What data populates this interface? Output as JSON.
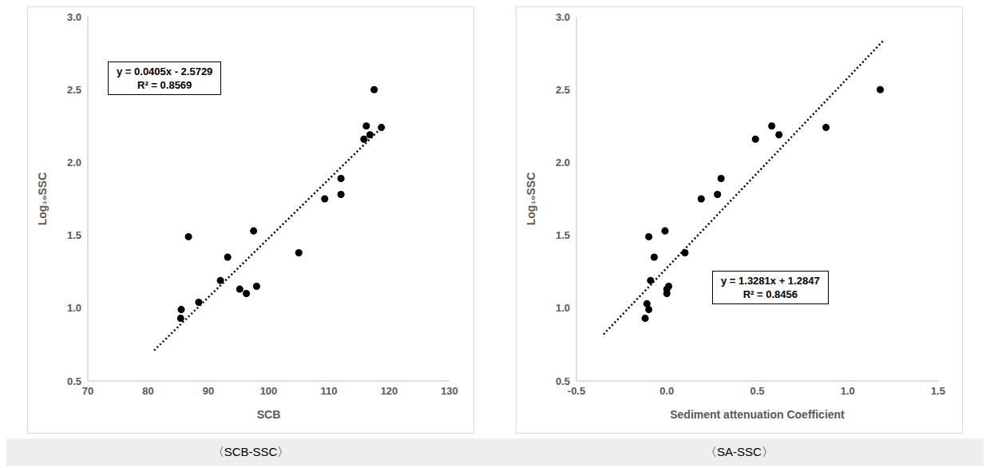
{
  "chart_data": [
    {
      "type": "scatter",
      "caption": "〈SCB-SSC〉",
      "x_label": "SCB",
      "y_label": "Log₁₀SSC",
      "x": [
        85.5,
        85.4,
        86.7,
        88.4,
        92.0,
        93.2,
        95.2,
        96.3,
        97.5,
        98.0,
        105.0,
        109.3,
        112.0,
        112.0,
        115.8,
        116.2,
        116.8,
        117.5,
        118.7
      ],
      "values": [
        0.99,
        0.93,
        1.49,
        1.04,
        1.19,
        1.35,
        1.13,
        1.1,
        1.53,
        1.15,
        1.38,
        1.75,
        1.89,
        1.78,
        2.16,
        2.25,
        2.19,
        2.5,
        2.24
      ],
      "color": "#000000",
      "marker": "circle",
      "trend_line": {
        "x": [
          81,
          119
        ],
        "values": [
          0.71,
          2.25
        ],
        "color": "#000000",
        "line_style": "dotted"
      },
      "annotations": [
        "y = 0.0405x - 2.5729",
        "R² = 0.8569"
      ],
      "xlim": [
        70,
        130
      ],
      "xticks": [
        70,
        80,
        90,
        100,
        110,
        120,
        130
      ],
      "ylim": [
        0.5,
        3.0
      ],
      "yticks": [
        {
          "value": 0.5,
          "label": "0.5"
        },
        {
          "value": 1,
          "label": "1.0"
        },
        {
          "value": 1.5,
          "label": "1.5"
        },
        {
          "value": 2,
          "label": "2.0"
        },
        {
          "value": 2.5,
          "label": "2.5"
        },
        {
          "value": 3,
          "label": "3.0"
        }
      ],
      "grid": false
    },
    {
      "type": "scatter",
      "caption": "〈SA-SSC〉",
      "x_label": "Sediment attenuation Coefficient",
      "y_label": "Log₁₀SSC",
      "x": [
        -0.12,
        -0.11,
        -0.1,
        -0.1,
        -0.09,
        -0.07,
        -0.01,
        0.0,
        0.0,
        0.01,
        0.1,
        0.19,
        0.28,
        0.3,
        0.49,
        0.58,
        0.62,
        0.88,
        1.18
      ],
      "values": [
        0.93,
        1.03,
        0.99,
        1.49,
        1.19,
        1.35,
        1.53,
        1.13,
        1.1,
        1.15,
        1.38,
        1.75,
        1.78,
        1.89,
        2.16,
        2.25,
        2.19,
        2.24,
        2.5
      ],
      "color": "#000000",
      "marker": "circle",
      "trend_line": {
        "x": [
          -0.35,
          1.2
        ],
        "values": [
          0.82,
          2.84
        ],
        "color": "#000000",
        "line_style": "dotted"
      },
      "annotations": [
        "y = 1.3281x + 1.2847",
        "R² = 0.8456"
      ],
      "xlim": [
        -0.5,
        1.5
      ],
      "xticks": [
        {
          "value": -0.5,
          "label": "-0.5"
        },
        {
          "value": 0,
          "label": "0.0"
        },
        {
          "value": 0.5,
          "label": "0.5"
        },
        {
          "value": 1,
          "label": "1.0"
        },
        {
          "value": 1.5,
          "label": "1.5"
        }
      ],
      "ylim": [
        0.5,
        3.0
      ],
      "yticks": [
        {
          "value": 0.5,
          "label": "0.5"
        },
        {
          "value": 1,
          "label": "1.0"
        },
        {
          "value": 1.5,
          "label": "1.5"
        },
        {
          "value": 2,
          "label": "2.0"
        },
        {
          "value": 2.5,
          "label": "2.5"
        },
        {
          "value": 3,
          "label": "3.0"
        }
      ],
      "grid": false
    }
  ]
}
